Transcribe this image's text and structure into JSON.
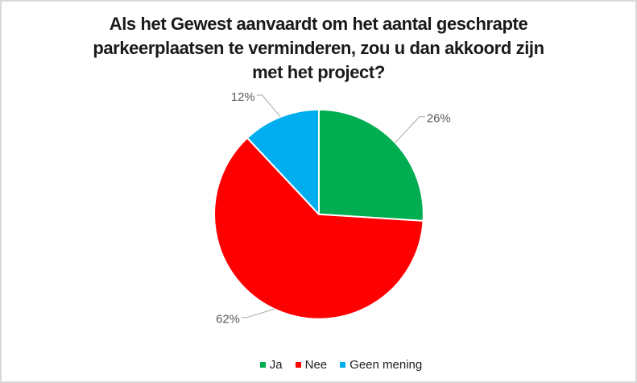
{
  "frame": {
    "background": "#FFFFFF",
    "border_color": "#D9D9D9"
  },
  "chart_data": {
    "type": "pie",
    "title": "Als het Gewest aanvaardt om het aantal geschrapte parkeerplaatsen te verminderen, zou u dan akkoord zijn met het project?",
    "title_lines": [
      "Als het Gewest aanvaardt om het aantal geschrapte",
      "parkeerplaatsen te verminderen, zou u dan akkoord zijn",
      "met het project?"
    ],
    "slices": [
      {
        "label": "Ja",
        "value": 26,
        "display": "26%",
        "color": "#00AD51"
      },
      {
        "label": "Nee",
        "value": 62,
        "display": "62%",
        "color": "#FF0000"
      },
      {
        "label": "Geen mening",
        "value": 12,
        "display": "12%",
        "color": "#00AEEF"
      }
    ],
    "start_angle_deg": 0,
    "direction": "clockwise",
    "legend_position": "bottom",
    "title_color": "#1A1A1A",
    "data_label_color": "#595959",
    "legend_text_color": "#1F1F1F",
    "leader_line_color": "#A6A6A6",
    "slice_border_color": "#FFFFFF"
  }
}
